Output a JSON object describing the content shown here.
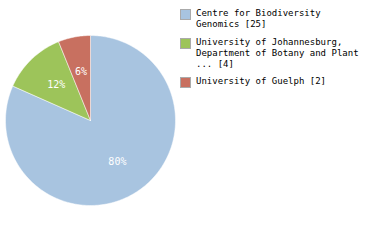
{
  "chart_data": {
    "type": "pie",
    "categories": [
      "Centre for Biodiversity\nGenomics [25]",
      "University of Johannesburg,\nDepartment of Botany and Plant\n... [4]",
      "University of Guelph [2]"
    ],
    "values": [
      80,
      12,
      6
    ],
    "value_labels": [
      "80%",
      "12%",
      "6%"
    ],
    "colors": [
      "#a8c4e0",
      "#9dc45a",
      "#c87060"
    ],
    "data_labels": true,
    "legend": "right"
  }
}
